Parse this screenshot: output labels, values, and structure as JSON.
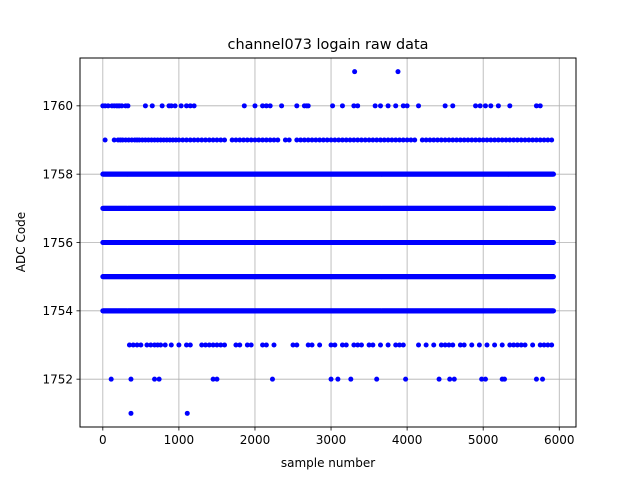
{
  "chart_data": {
    "type": "scatter",
    "title": "channel073 logain raw data",
    "xlabel": "sample number",
    "ylabel": "ADC Code",
    "xlim": [
      -300,
      6220
    ],
    "ylim": [
      1750.6,
      1761.4
    ],
    "xticks": [
      0,
      1000,
      2000,
      3000,
      4000,
      5000,
      6000
    ],
    "xtick_labels": [
      "0",
      "1000",
      "2000",
      "3000",
      "4000",
      "5000",
      "6000"
    ],
    "yticks": [
      1752,
      1754,
      1756,
      1758,
      1760
    ],
    "ytick_labels": [
      "1752",
      "1754",
      "1756",
      "1758",
      "1760"
    ],
    "grid": true,
    "marker_color": "#0000ff",
    "sample_range": [
      0,
      5925
    ],
    "dense_levels": [
      1754,
      1755,
      1756,
      1757,
      1758
    ],
    "sparse_points": [
      {
        "y": 1761,
        "x": [
          3310,
          3880
        ]
      },
      {
        "y": 1760,
        "x": [
          0,
          30,
          70,
          120,
          150,
          180,
          200,
          220,
          250,
          300,
          330,
          560,
          650,
          780,
          870,
          900,
          950,
          1030,
          1100,
          1150,
          1200,
          1860,
          2000,
          2100,
          2150,
          2200,
          2350,
          2550,
          2650,
          2680,
          2700,
          3020,
          3150,
          3300,
          3350,
          3580,
          3650,
          3750,
          3850,
          3950,
          4000,
          4150,
          4500,
          4600,
          4900,
          4960,
          5030,
          5100,
          5200,
          5350,
          5700,
          5750
        ]
      },
      {
        "y": 1759,
        "x": [
          30,
          150,
          200,
          230,
          260,
          300,
          340,
          380,
          420,
          450,
          480,
          520,
          560,
          600,
          640,
          680,
          720,
          760,
          800,
          840,
          880,
          920,
          960,
          1000,
          1050,
          1100,
          1150,
          1200,
          1250,
          1300,
          1350,
          1400,
          1450,
          1500,
          1550,
          1600,
          1700,
          1750,
          1800,
          1850,
          1900,
          1950,
          2000,
          2050,
          2100,
          2150,
          2200,
          2250,
          2300,
          2400,
          2450,
          2550,
          2600,
          2650,
          2700,
          2750,
          2800,
          2850,
          2900,
          2950,
          3000,
          3050,
          3100,
          3150,
          3200,
          3250,
          3300,
          3350,
          3400,
          3450,
          3500,
          3550,
          3600,
          3650,
          3700,
          3750,
          3800,
          3850,
          3900,
          3950,
          4000,
          4050,
          4100,
          4200,
          4250,
          4300,
          4350,
          4400,
          4450,
          4500,
          4550,
          4600,
          4650,
          4700,
          4750,
          4800,
          4850,
          4900,
          4950,
          5000,
          5050,
          5100,
          5150,
          5200,
          5250,
          5300,
          5350,
          5400,
          5450,
          5500,
          5550,
          5600,
          5650,
          5700,
          5750,
          5800,
          5850,
          5900
        ]
      },
      {
        "y": 1753,
        "x": [
          350,
          400,
          450,
          500,
          580,
          630,
          680,
          720,
          760,
          820,
          900,
          1000,
          1100,
          1150,
          1300,
          1350,
          1400,
          1450,
          1500,
          1550,
          1600,
          1750,
          1800,
          1900,
          1950,
          2100,
          2150,
          2250,
          2500,
          2550,
          2700,
          2750,
          2850,
          3000,
          3050,
          3150,
          3200,
          3300,
          3350,
          3400,
          3500,
          3550,
          3650,
          3750,
          3850,
          3900,
          3950,
          4150,
          4250,
          4350,
          4450,
          4500,
          4550,
          4600,
          4700,
          4750,
          4850,
          4950,
          5050,
          5150,
          5250,
          5350,
          5400,
          5450,
          5500,
          5550,
          5650,
          5750,
          5800,
          5850,
          5900
        ]
      },
      {
        "y": 1752,
        "x": [
          110,
          370,
          680,
          740,
          1450,
          1500,
          2230,
          3000,
          3090,
          3260,
          3600,
          3980,
          4420,
          4560,
          4620,
          4980,
          5030,
          5250,
          5280,
          5700,
          5780
        ]
      },
      {
        "y": 1751,
        "x": [
          370,
          1110
        ]
      }
    ]
  }
}
